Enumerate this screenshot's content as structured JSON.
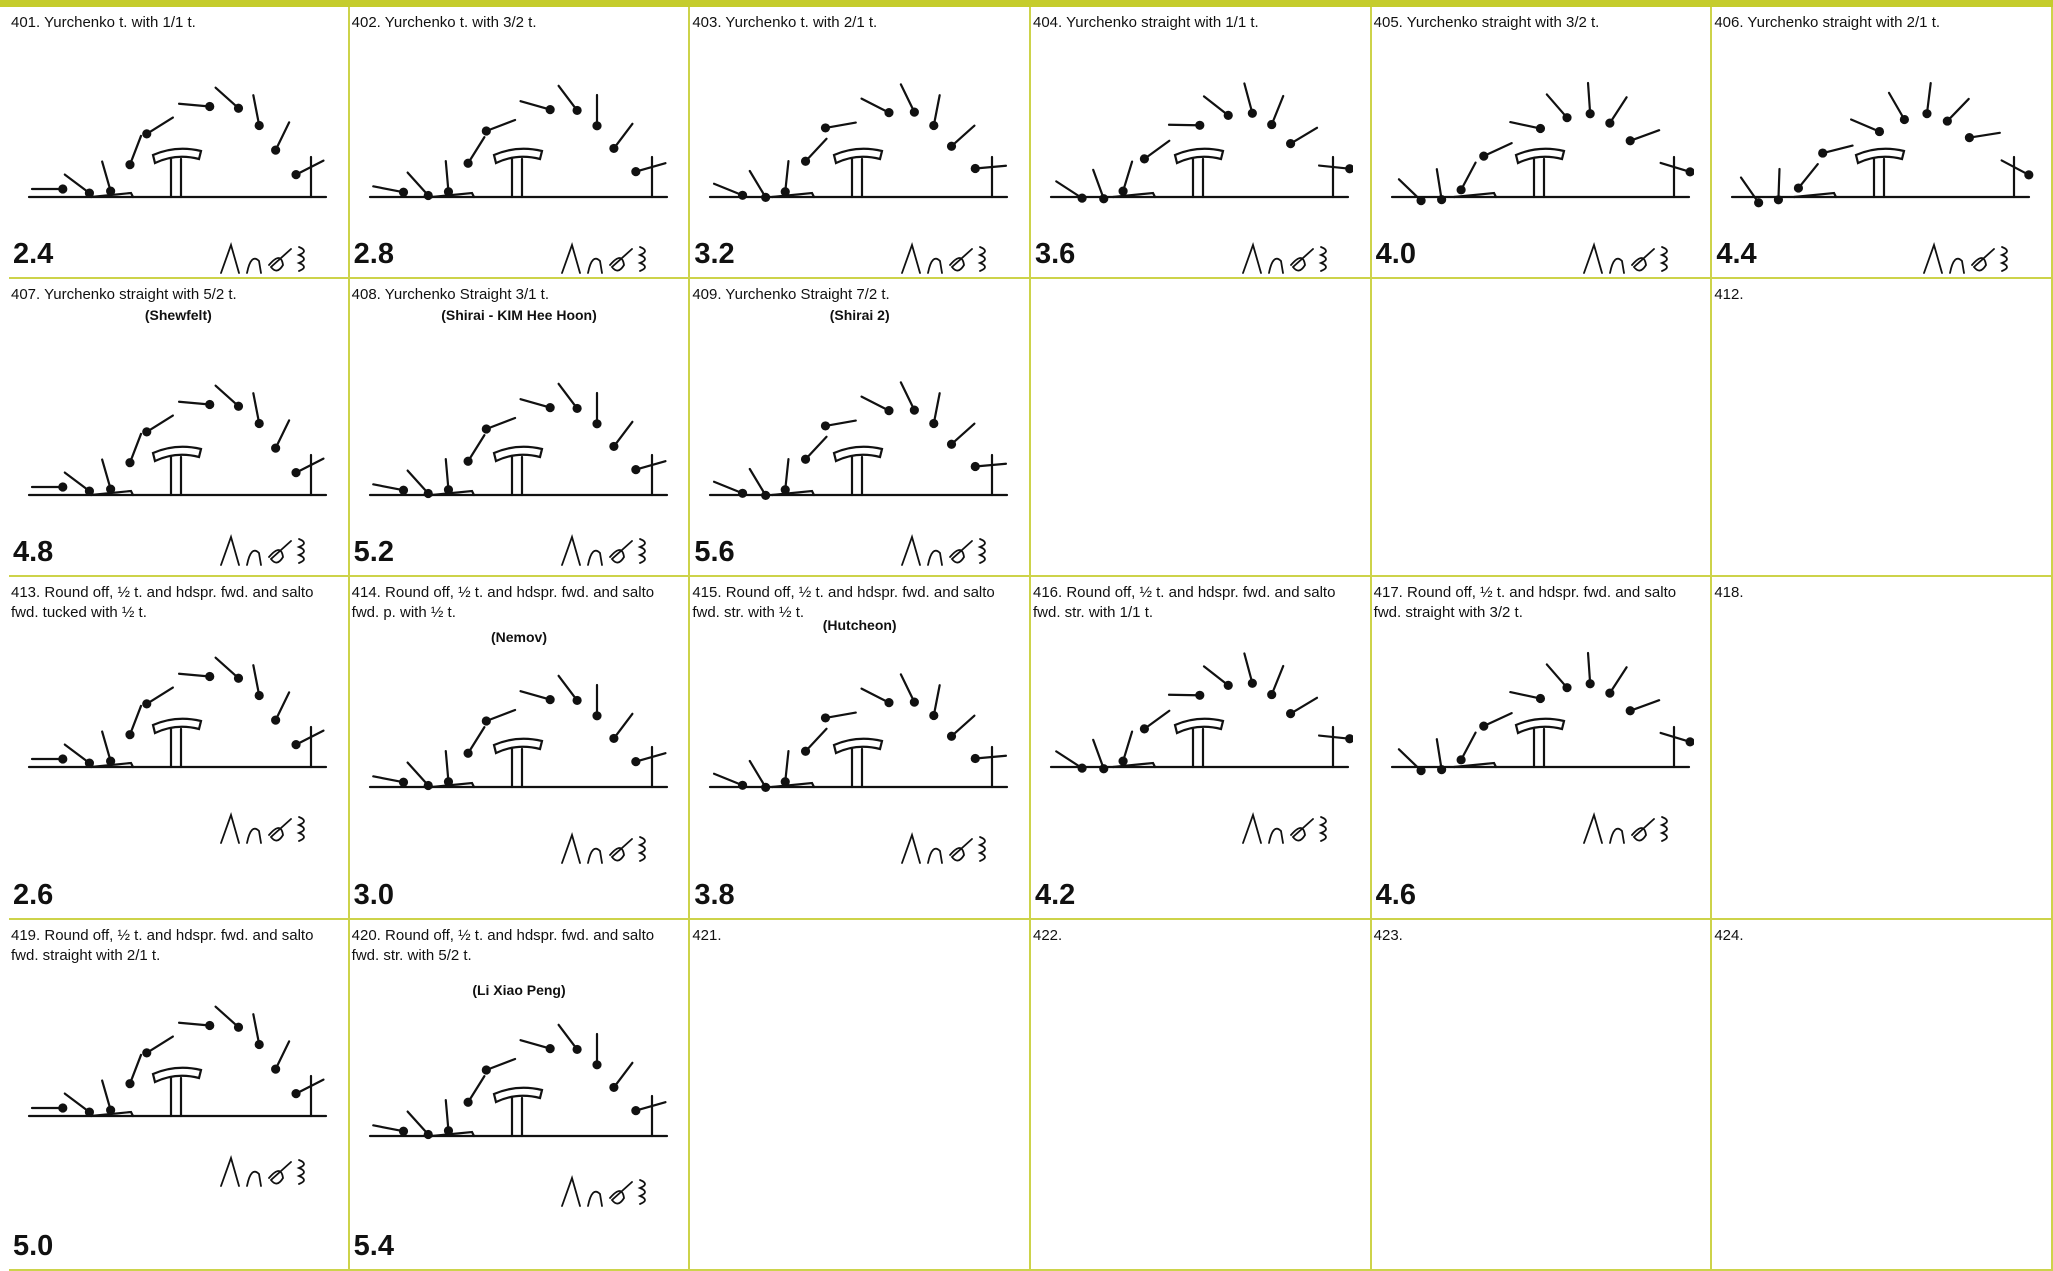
{
  "rows": [
    [
      {
        "title": "401. Yurchenko t. with 1/1 t.",
        "value": "2.4"
      },
      {
        "title": "402. Yurchenko t. with 3/2 t.",
        "value": "2.8"
      },
      {
        "title": "403. Yurchenko t. with 2/1 t.",
        "value": "3.2"
      },
      {
        "title": "404. Yurchenko straight with 1/1 t.",
        "value": "3.6"
      },
      {
        "title": "405. Yurchenko straight with 3/2 t.",
        "value": "4.0"
      },
      {
        "title": "406. Yurchenko straight with 2/1 t.",
        "value": "4.4"
      }
    ],
    [
      {
        "title": "407. Yurchenko straight with 5/2 t.",
        "name": "(Shewfelt)",
        "value": "4.8"
      },
      {
        "title": "408. Yurchenko Straight 3/1 t.",
        "name": "(Shirai - KIM Hee Hoon)",
        "value": "5.2"
      },
      {
        "title": "409. Yurchenko Straight 7/2 t.",
        "name": "(Shirai 2)",
        "value": "5.6"
      },
      null,
      null,
      {
        "title": "412."
      }
    ],
    [
      {
        "title": "413. Round off, ½ t. and hdspr. fwd. and salto fwd. tucked with ½ t.",
        "value": "2.6"
      },
      {
        "title": "414. Round off, ½ t. and hdspr. fwd. and salto fwd. p. with ½ t.",
        "name": "(Nemov)",
        "value": "3.0"
      },
      {
        "title": "415. Round off, ½ t. and hdspr. fwd. and salto fwd. str. with ½ t.",
        "name": "(Hutcheon)",
        "value": "3.8"
      },
      {
        "title": "416. Round off, ½ t. and hdspr. fwd. and salto fwd. str. with 1/1 t.",
        "value": "4.2"
      },
      {
        "title": "417. Round off, ½ t. and hdspr. fwd. and salto fwd. straight with 3/2 t.",
        "value": "4.6"
      },
      {
        "title": "418."
      }
    ],
    [
      {
        "title": "419. Round off, ½ t. and hdspr. fwd. and salto fwd. straight with 2/1 t.",
        "value": "5.0"
      },
      {
        "title": "420. Round off, ½ t. and hdspr. fwd. and salto fwd. str. with 5/2 t.",
        "name": "(Li Xiao Peng)",
        "value": "5.4"
      },
      {
        "title": "421."
      },
      {
        "title": "422."
      },
      {
        "title": "423."
      },
      {
        "title": "424."
      }
    ]
  ]
}
